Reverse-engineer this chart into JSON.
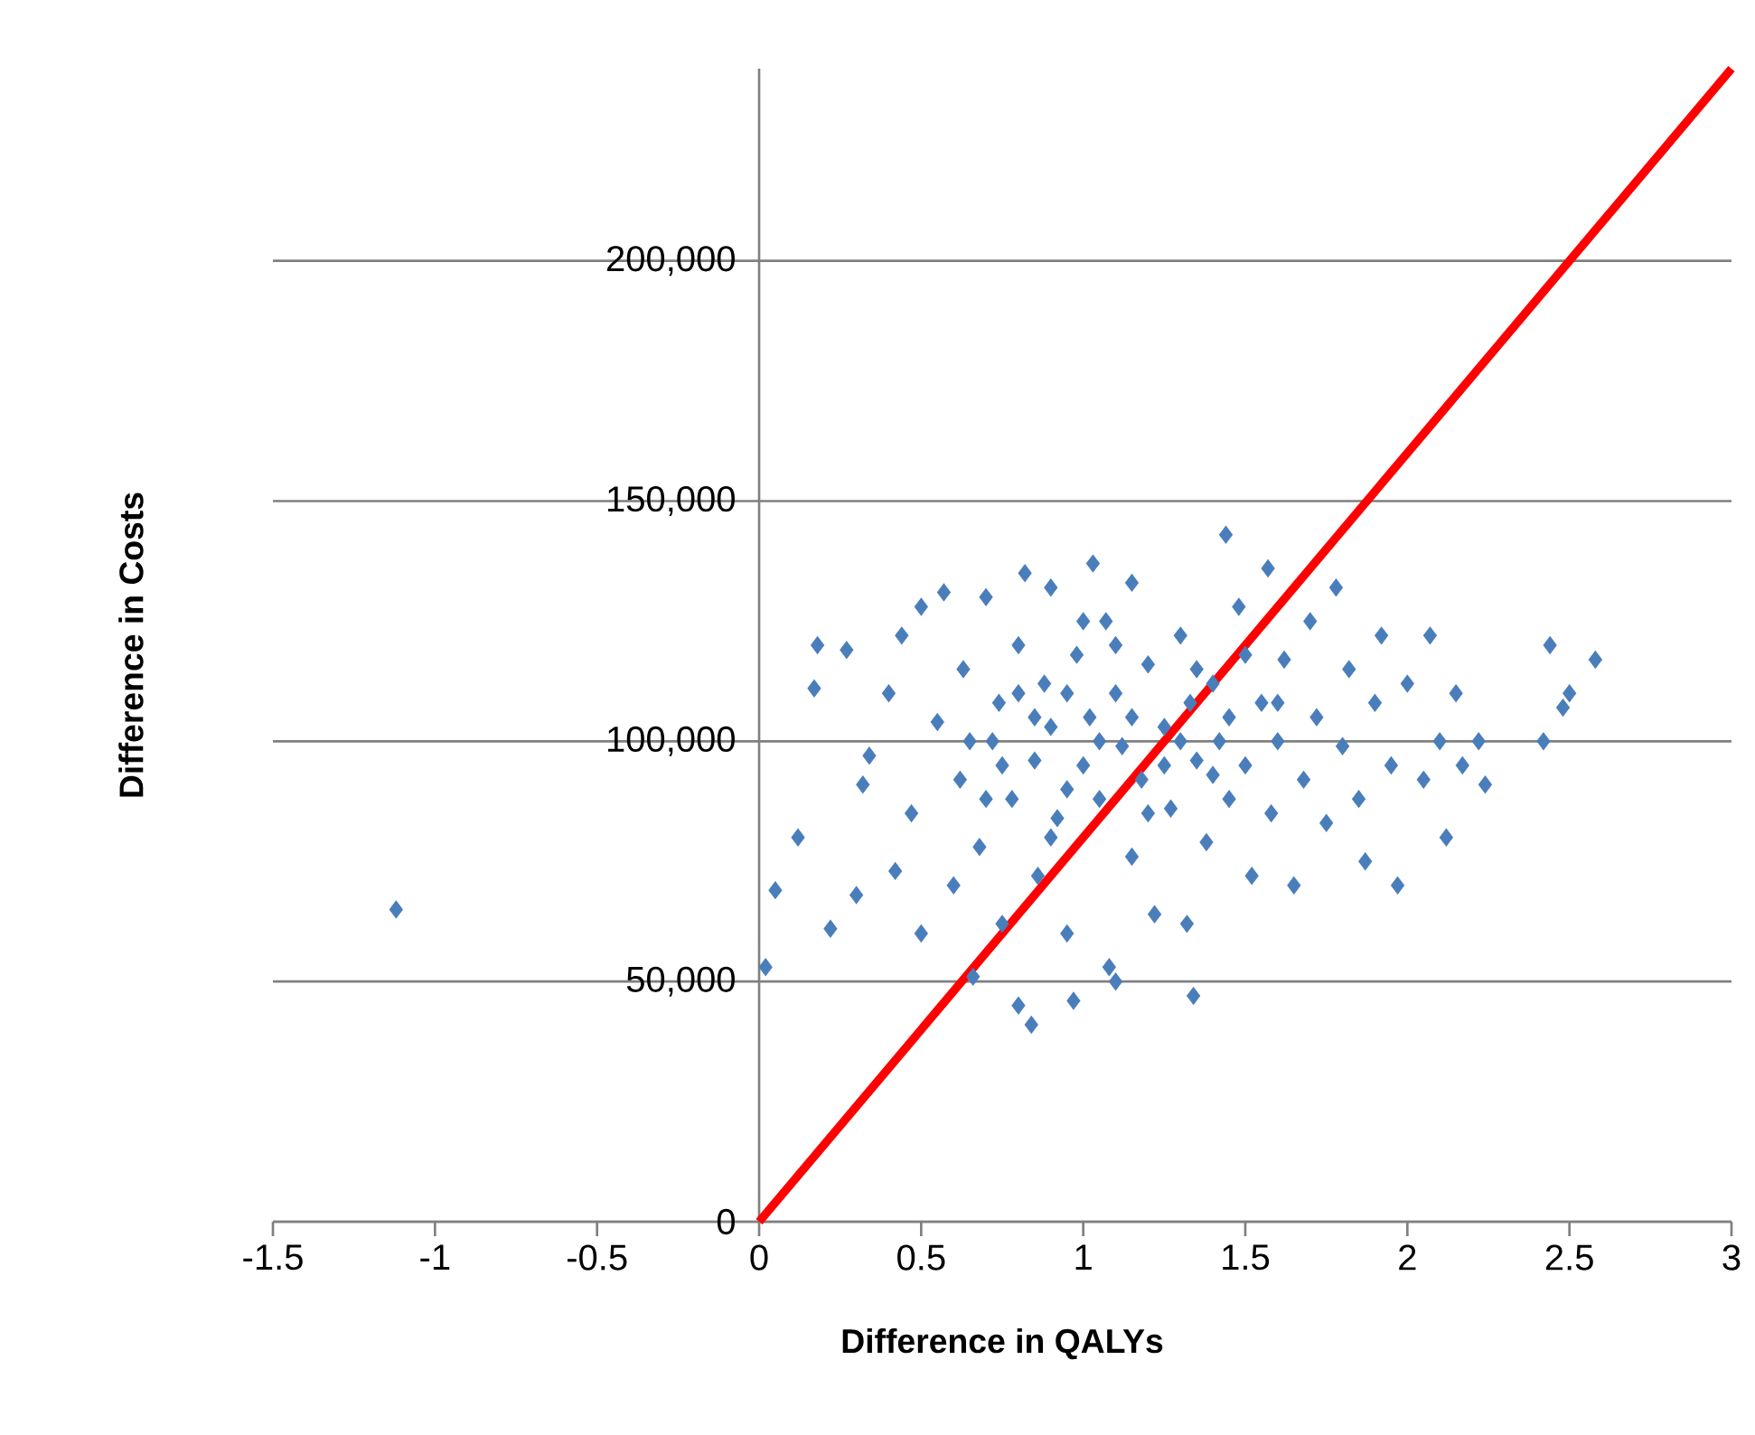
{
  "chart_data": {
    "type": "scatter",
    "xlabel": "Difference in QALYs",
    "ylabel": "Difference in Costs",
    "xlim": [
      -1.5,
      3
    ],
    "ylim": [
      0,
      240000
    ],
    "xticks": [
      -1.5,
      -1,
      -0.5,
      0,
      0.5,
      1,
      1.5,
      2,
      2.5,
      3
    ],
    "yticks": [
      {
        "value": 0,
        "label": "0"
      },
      {
        "value": 50000,
        "label": "50,000"
      },
      {
        "value": 100000,
        "label": "100,000"
      },
      {
        "value": 150000,
        "label": "150,000"
      },
      {
        "value": 200000,
        "label": "200,000"
      }
    ],
    "grid": "y",
    "series": [
      {
        "color": "#4a7ebb",
        "marker": "diamond",
        "x": [
          -1.12,
          0.02,
          0.05,
          0.12,
          0.18,
          0.17,
          0.22,
          0.27,
          0.3,
          0.32,
          0.34,
          0.4,
          0.42,
          0.44,
          0.47,
          0.5,
          0.5,
          0.55,
          0.57,
          0.6,
          0.62,
          0.63,
          0.66,
          0.68,
          0.7,
          0.72,
          0.74,
          0.75,
          0.78,
          0.8,
          0.8,
          0.82,
          0.84,
          0.85,
          0.86,
          0.88,
          0.9,
          0.9,
          0.92,
          0.95,
          0.97,
          0.98,
          1.0,
          1.02,
          1.03,
          1.05,
          1.07,
          1.08,
          1.1,
          1.1,
          1.12,
          1.15,
          1.15,
          1.18,
          1.2,
          1.22,
          1.25,
          1.27,
          1.3,
          1.32,
          1.33,
          1.34,
          1.35,
          1.38,
          1.4,
          1.42,
          1.44,
          1.45,
          1.48,
          1.5,
          1.52,
          1.55,
          1.57,
          1.58,
          1.6,
          1.62,
          1.65,
          1.68,
          1.7,
          1.72,
          1.75,
          1.78,
          1.8,
          1.82,
          1.85,
          1.87,
          1.9,
          1.92,
          1.95,
          1.97,
          2.0,
          2.05,
          2.07,
          2.1,
          2.12,
          2.15,
          2.17,
          2.22,
          2.24,
          2.42,
          2.44,
          2.48,
          2.5,
          2.58,
          0.65,
          0.75,
          0.85,
          0.95,
          1.05,
          1.15,
          1.25,
          1.35,
          1.45,
          0.95,
          1.1,
          1.2,
          0.8,
          1.0,
          1.3,
          1.4,
          0.7,
          0.9,
          1.6,
          1.5
        ],
        "values": [
          65000,
          53000,
          69000,
          80000,
          120000,
          111000,
          61000,
          119000,
          68000,
          91000,
          97000,
          110000,
          73000,
          122000,
          85000,
          60000,
          128000,
          104000,
          131000,
          70000,
          92000,
          115000,
          51000,
          78000,
          130000,
          100000,
          108000,
          62000,
          88000,
          45000,
          120000,
          135000,
          41000,
          96000,
          72000,
          112000,
          103000,
          132000,
          84000,
          60000,
          46000,
          118000,
          95000,
          105000,
          137000,
          88000,
          125000,
          53000,
          50000,
          110000,
          99000,
          76000,
          133000,
          92000,
          116000,
          64000,
          103000,
          86000,
          122000,
          62000,
          108000,
          47000,
          96000,
          79000,
          112000,
          100000,
          143000,
          88000,
          128000,
          95000,
          72000,
          108000,
          136000,
          85000,
          100000,
          117000,
          70000,
          92000,
          125000,
          105000,
          83000,
          132000,
          99000,
          115000,
          88000,
          75000,
          108000,
          122000,
          95000,
          70000,
          112000,
          92000,
          122000,
          100000,
          80000,
          110000,
          95000,
          100000,
          91000,
          100000,
          120000,
          107000,
          110000,
          117000,
          100000,
          95000,
          105000,
          110000,
          100000,
          105000,
          95000,
          115000,
          105000,
          90000,
          120000,
          85000,
          110000,
          125000,
          100000,
          93000,
          88000,
          80000,
          108000,
          118000
        ]
      },
      {
        "type": "line",
        "color": "#ff0000",
        "marker": "none",
        "x": [
          0,
          3
        ],
        "values": [
          0,
          240000
        ]
      }
    ]
  }
}
